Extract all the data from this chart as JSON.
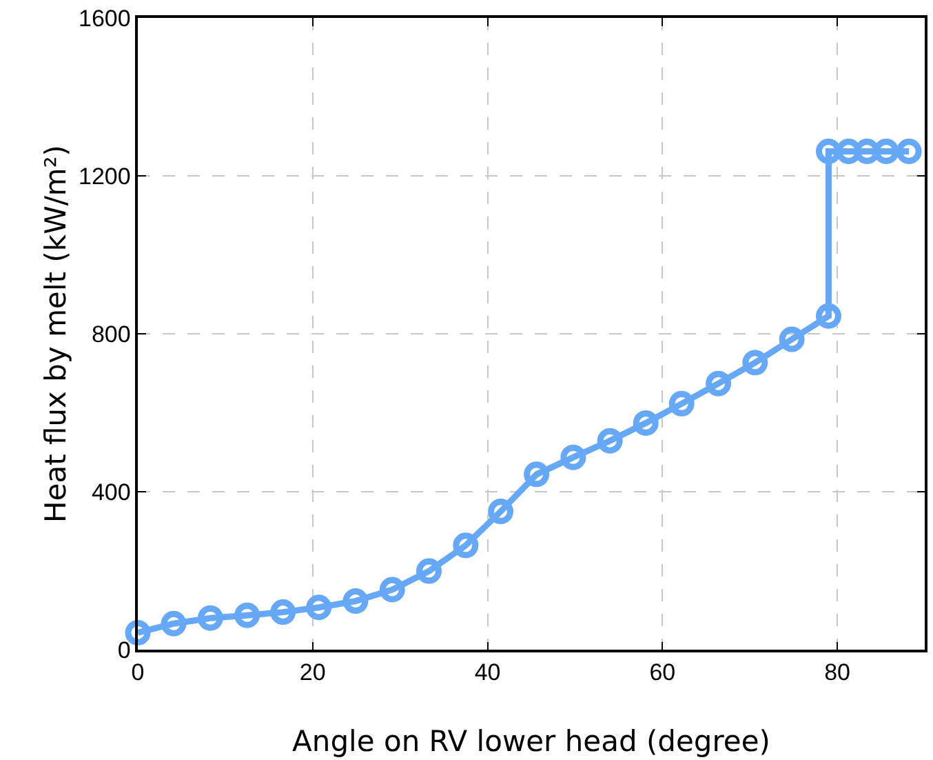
{
  "chart_data": {
    "type": "line",
    "xlabel": "Angle on RV lower head (degree)",
    "ylabel": "Heat flux by melt (kW/m²)",
    "x": [
      0,
      4.1,
      8.3,
      12.5,
      16.6,
      20.7,
      24.9,
      29.1,
      33.3,
      37.5,
      41.5,
      45.6,
      49.8,
      54,
      58.1,
      62.2,
      66.4,
      70.6,
      74.8,
      79,
      79,
      81.3,
      83.4,
      85.6,
      88.2
    ],
    "series": [
      {
        "color": "#66a8f5",
        "values": [
          43,
          66,
          80,
          87,
          95,
          107,
          123,
          152,
          199,
          264,
          350,
          444,
          487,
          529,
          574,
          623,
          674,
          727,
          786,
          845,
          1262,
          1262,
          1262,
          1262,
          1262
        ]
      }
    ],
    "xlim": [
      0,
      90
    ],
    "xticks": [
      0,
      20,
      40,
      60,
      80
    ],
    "ylim": [
      0,
      1600
    ],
    "yticks": [
      0,
      400,
      800,
      1200,
      1600
    ],
    "grid": true,
    "marker": "circle",
    "line_style": "solid"
  }
}
